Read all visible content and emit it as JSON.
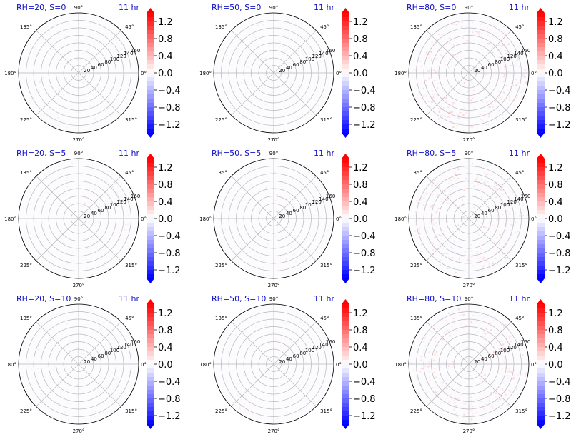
{
  "figure": {
    "colors": {
      "title": "#1010c8",
      "negative": "#0000ff",
      "positive": "#ff0000",
      "zero": "#ffffff"
    },
    "angle_tick_labels": [
      "90°",
      "45°",
      "0°",
      "315°",
      "270°",
      "225°",
      "180°",
      "135°"
    ],
    "colorbar_tick_labels": [
      "1.2",
      "0.8",
      "0.4",
      "0.0",
      "−0.4",
      "−0.8",
      "−1.2"
    ]
  },
  "chart_data": [
    {
      "type": "heatmap",
      "projection": "polar",
      "title_left": "RH=20, S=0",
      "title_right": "11 hr",
      "radial_ticks": [
        20,
        40,
        60,
        80,
        100,
        120,
        140,
        160
      ],
      "rlim": [
        0,
        160
      ],
      "angular_ticks_deg": [
        0,
        45,
        90,
        135,
        180,
        225,
        270,
        315
      ],
      "colorbar": {
        "ticks": [
          1.2,
          0.8,
          0.4,
          0.0,
          -0.4,
          -0.8,
          -1.2
        ],
        "range": [
          -1.4,
          1.4
        ],
        "cmap": "bwr",
        "extend": "both"
      },
      "grid": true
    },
    {
      "type": "heatmap",
      "projection": "polar",
      "title_left": "RH=50, S=0",
      "title_right": "11 hr",
      "radial_ticks": [
        20,
        40,
        60,
        80,
        100,
        120,
        140,
        160
      ],
      "rlim": [
        0,
        160
      ],
      "angular_ticks_deg": [
        0,
        45,
        90,
        135,
        180,
        225,
        270,
        315
      ],
      "colorbar": {
        "ticks": [
          1.2,
          0.8,
          0.4,
          0.0,
          -0.4,
          -0.8,
          -1.2
        ],
        "range": [
          -1.4,
          1.4
        ],
        "cmap": "bwr",
        "extend": "both"
      },
      "grid": true
    },
    {
      "type": "heatmap",
      "projection": "polar",
      "title_left": "RH=80, S=0",
      "title_right": "11 hr",
      "radial_ticks": [
        20,
        40,
        60,
        80,
        100,
        120,
        140,
        160
      ],
      "rlim": [
        0,
        160
      ],
      "angular_ticks_deg": [
        0,
        45,
        90,
        135,
        180,
        225,
        270,
        315
      ],
      "colorbar": {
        "ticks": [
          1.2,
          0.8,
          0.4,
          0.0,
          -0.4,
          -0.8,
          -1.2
        ],
        "range": [
          -1.4,
          1.4
        ],
        "cmap": "bwr",
        "extend": "both"
      },
      "grid": true
    },
    {
      "type": "heatmap",
      "projection": "polar",
      "title_left": "RH=20, S=5",
      "title_right": "11 hr",
      "radial_ticks": [
        20,
        40,
        60,
        80,
        100,
        120,
        140,
        160
      ],
      "rlim": [
        0,
        160
      ],
      "angular_ticks_deg": [
        0,
        45,
        90,
        135,
        180,
        225,
        270,
        315
      ],
      "colorbar": {
        "ticks": [
          1.2,
          0.8,
          0.4,
          0.0,
          -0.4,
          -0.8,
          -1.2
        ],
        "range": [
          -1.4,
          1.4
        ],
        "cmap": "bwr",
        "extend": "both"
      },
      "grid": true
    },
    {
      "type": "heatmap",
      "projection": "polar",
      "title_left": "RH=50, S=5",
      "title_right": "11 hr",
      "radial_ticks": [
        20,
        40,
        60,
        80,
        100,
        120,
        140,
        160
      ],
      "rlim": [
        0,
        160
      ],
      "angular_ticks_deg": [
        0,
        45,
        90,
        135,
        180,
        225,
        270,
        315
      ],
      "colorbar": {
        "ticks": [
          1.2,
          0.8,
          0.4,
          0.0,
          -0.4,
          -0.8,
          -1.2
        ],
        "range": [
          -1.4,
          1.4
        ],
        "cmap": "bwr",
        "extend": "both"
      },
      "grid": true
    },
    {
      "type": "heatmap",
      "projection": "polar",
      "title_left": "RH=80, S=5",
      "title_right": "11 hr",
      "radial_ticks": [
        20,
        40,
        60,
        80,
        100,
        120,
        140,
        160
      ],
      "rlim": [
        0,
        160
      ],
      "angular_ticks_deg": [
        0,
        45,
        90,
        135,
        180,
        225,
        270,
        315
      ],
      "colorbar": {
        "ticks": [
          1.2,
          0.8,
          0.4,
          0.0,
          -0.4,
          -0.8,
          -1.2
        ],
        "range": [
          -1.4,
          1.4
        ],
        "cmap": "bwr",
        "extend": "both"
      },
      "grid": true
    },
    {
      "type": "heatmap",
      "projection": "polar",
      "title_left": "RH=20, S=10",
      "title_right": "11 hr",
      "radial_ticks": [
        20,
        40,
        60,
        80,
        100,
        120,
        140,
        160
      ],
      "rlim": [
        0,
        160
      ],
      "angular_ticks_deg": [
        0,
        45,
        90,
        135,
        180,
        225,
        270,
        315
      ],
      "colorbar": {
        "ticks": [
          1.2,
          0.8,
          0.4,
          0.0,
          -0.4,
          -0.8,
          -1.2
        ],
        "range": [
          -1.4,
          1.4
        ],
        "cmap": "bwr",
        "extend": "both"
      },
      "grid": true
    },
    {
      "type": "heatmap",
      "projection": "polar",
      "title_left": "RH=50, S=10",
      "title_right": "11 hr",
      "radial_ticks": [
        20,
        40,
        60,
        80,
        100,
        120,
        140,
        160
      ],
      "rlim": [
        0,
        160
      ],
      "angular_ticks_deg": [
        0,
        45,
        90,
        135,
        180,
        225,
        270,
        315
      ],
      "colorbar": {
        "ticks": [
          1.2,
          0.8,
          0.4,
          0.0,
          -0.4,
          -0.8,
          -1.2
        ],
        "range": [
          -1.4,
          1.4
        ],
        "cmap": "bwr",
        "extend": "both"
      },
      "grid": true
    },
    {
      "type": "heatmap",
      "projection": "polar",
      "title_left": "RH=80, S=10",
      "title_right": "11 hr",
      "radial_ticks": [
        20,
        40,
        60,
        80,
        100,
        120,
        140,
        160
      ],
      "rlim": [
        0,
        160
      ],
      "angular_ticks_deg": [
        0,
        45,
        90,
        135,
        180,
        225,
        270,
        315
      ],
      "colorbar": {
        "ticks": [
          1.2,
          0.8,
          0.4,
          0.0,
          -0.4,
          -0.8,
          -1.2
        ],
        "range": [
          -1.4,
          1.4
        ],
        "cmap": "bwr",
        "extend": "both"
      },
      "grid": true
    }
  ]
}
